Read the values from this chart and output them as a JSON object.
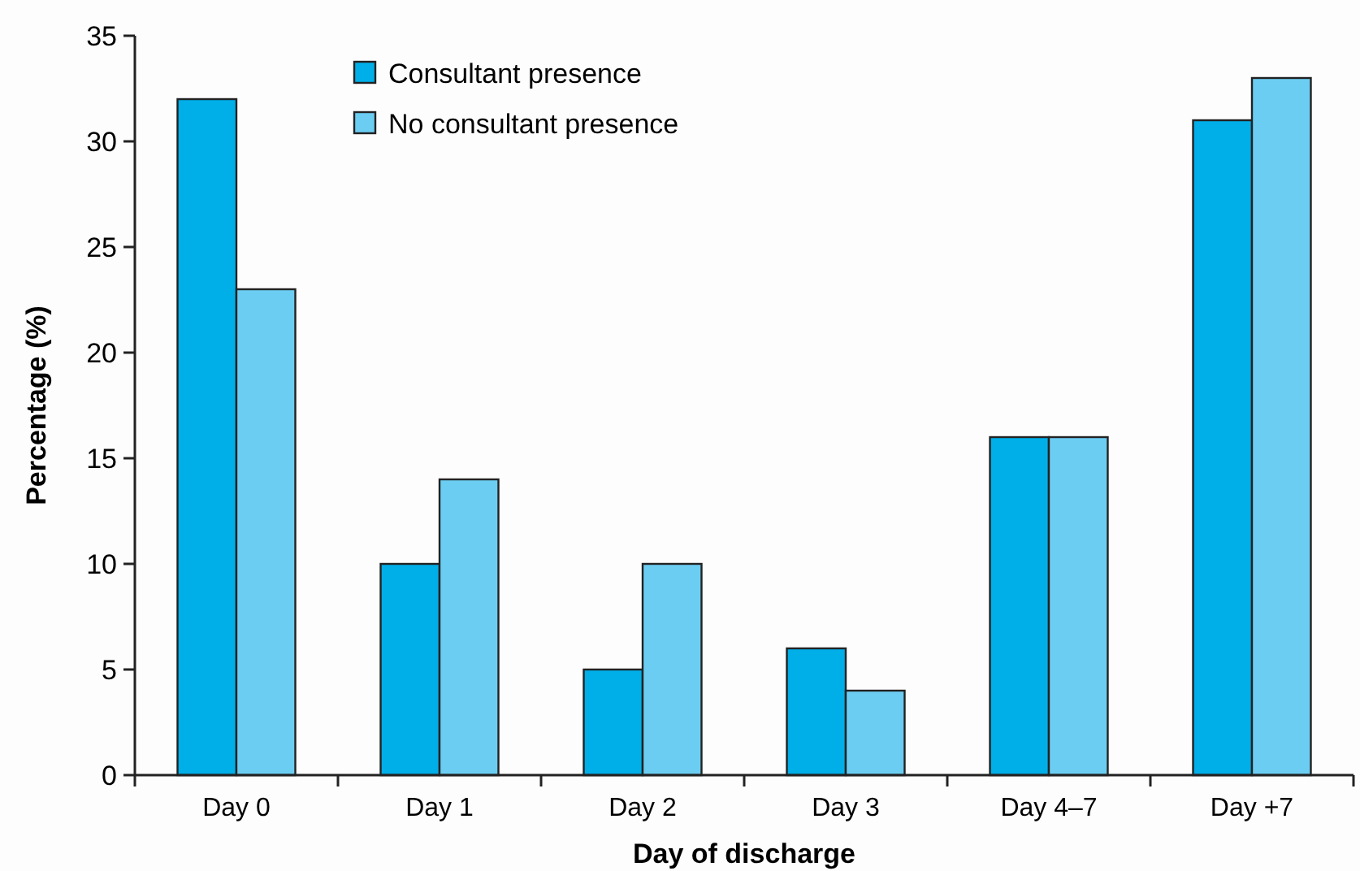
{
  "chart_data": {
    "type": "bar",
    "xlabel": "Day of discharge",
    "ylabel": "Percentage (%)",
    "categories": [
      "Day 0",
      "Day 1",
      "Day 2",
      "Day 3",
      "Day 4–7",
      "Day +7"
    ],
    "series": [
      {
        "name": "Consultant presence",
        "color": "#00aee8",
        "values": [
          32,
          10,
          5,
          6,
          16,
          31
        ]
      },
      {
        "name": "No consultant presence",
        "color": "#6ccdf2",
        "values": [
          23,
          14,
          10,
          4,
          16,
          33
        ]
      }
    ],
    "ylim": [
      0,
      35
    ],
    "yticks": [
      0,
      5,
      10,
      15,
      20,
      25,
      30,
      35
    ],
    "grid": false,
    "legend": "top"
  }
}
